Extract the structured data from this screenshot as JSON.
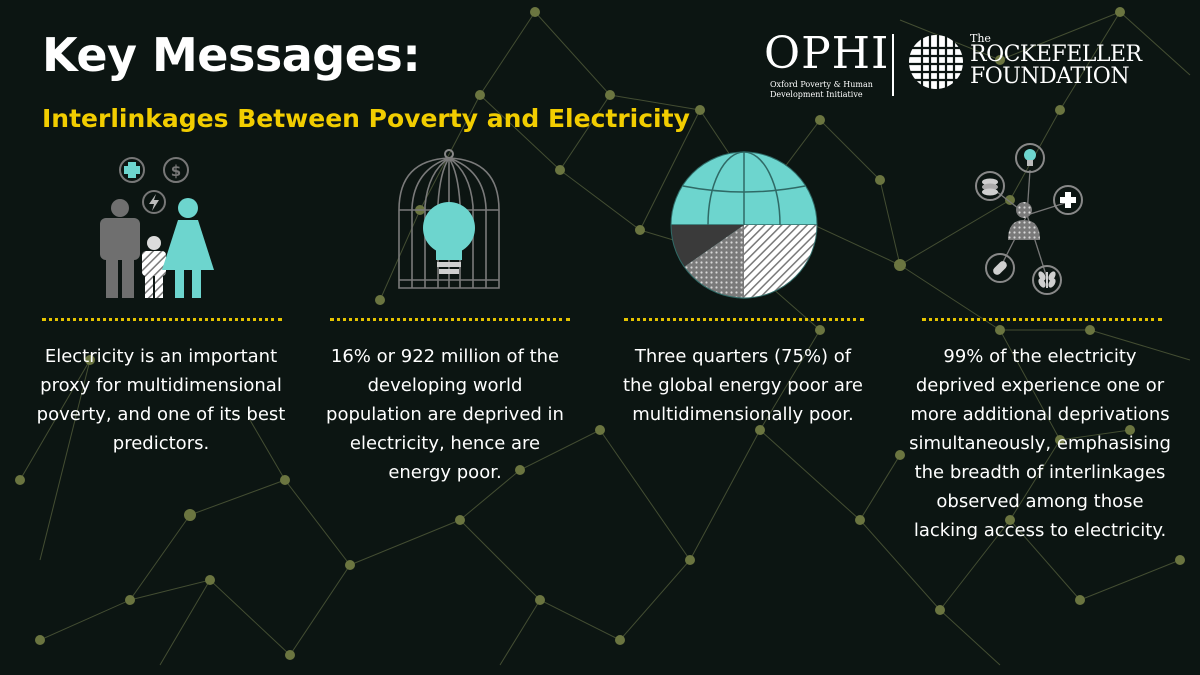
{
  "header": {
    "title": "Key Messages:",
    "subtitle": "Interlinkages Between Poverty and Electricity"
  },
  "logos": {
    "ophi": {
      "name": "OPHI",
      "subtitle_line1": "Oxford Poverty & Human",
      "subtitle_line2": "Development Initiative"
    },
    "rockefeller": {
      "the": "The",
      "line1": "ROCKEFELLER",
      "line2": "FOUNDATION"
    }
  },
  "columns": [
    {
      "icon": "family-icon",
      "text": "Electricity is an important proxy for multidimensional poverty, and one of its best predictors."
    },
    {
      "icon": "caged-lightbulb-icon",
      "text": "16% or 922 million of the developing world population are deprived in electricity, hence are energy poor."
    },
    {
      "icon": "globe-pie-icon",
      "text": "Three quarters (75%) of the global energy poor are multidimensionally poor."
    },
    {
      "icon": "deprivations-network-icon",
      "text": "99% of the electricity deprived experience one or more additional deprivations simultaneously, emphasising the breadth of interlinkages  observed among those lacking access to electricity."
    }
  ],
  "colors": {
    "background": "#0c1512",
    "accent_yellow": "#f2cd00",
    "teal": "#6dd5ce",
    "gray": "#6f6f6f",
    "network_lines": "#56603a"
  }
}
